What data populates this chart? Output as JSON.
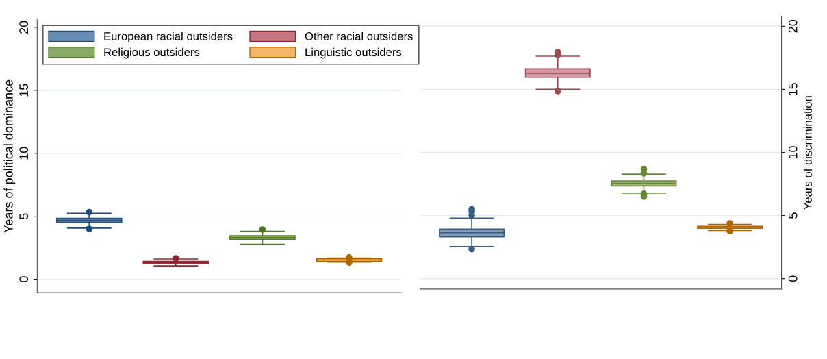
{
  "chart_data": [
    {
      "type": "box",
      "ylabel": "Years of political dominance",
      "categories": [
        null,
        null,
        null,
        null
      ],
      "ylim": [
        -1.06,
        20.6
      ],
      "yticks": [
        0,
        5,
        10,
        15,
        20
      ],
      "grid": "y",
      "legend": "top left",
      "tick_labels": "y",
      "series": [
        {
          "name": "European racial outsiders",
          "color": "#6a8cb0",
          "boxes": [
            {
              "low": 4.06,
              "q1": 4.52,
              "median": 4.68,
              "q3": 4.84,
              "high": 5.23,
              "outliers": [
                5.33,
                4.0
              ]
            },
            null,
            null,
            null
          ]
        },
        {
          "name": "Other racial outsiders",
          "color": "#c47780",
          "boxes": [
            null,
            {
              "low": 1.06,
              "q1": 1.22,
              "median": 1.32,
              "q3": 1.41,
              "high": 1.61,
              "outliers": [
                1.66
              ]
            },
            null,
            null
          ]
        },
        {
          "name": "Religious outsiders",
          "color": "#8aa866",
          "boxes": [
            null,
            null,
            {
              "low": 2.77,
              "q1": 3.16,
              "median": 3.3,
              "q3": 3.45,
              "high": 3.81,
              "outliers": [
                3.94
              ]
            },
            null
          ]
        },
        {
          "name": "Linguistic outsiders",
          "color": "#f2b766",
          "boxes": [
            null,
            null,
            null,
            {
              "low": 1.36,
              "q1": 1.4,
              "median": 1.53,
              "q3": 1.65,
              "high": 1.68,
              "outliers": [
                1.72,
                1.33
              ]
            }
          ]
        }
      ]
    },
    {
      "type": "box",
      "y2label": "Years of discrimination",
      "categories": [
        null,
        null,
        null,
        null
      ],
      "y2lim": [
        -0.82,
        20.8
      ],
      "y2ticks": [
        0,
        5,
        10,
        15,
        20
      ],
      "grid": "y",
      "tick_labels": "y",
      "series": [
        {
          "color": "#7f9bb8",
          "axis": "y2",
          "boxes": [
            {
              "low": 2.54,
              "q1": 3.32,
              "median": 3.64,
              "q3": 3.93,
              "high": 4.8,
              "outliers": [
                5.5,
                5.3,
                5.0,
                2.34
              ]
            },
            null,
            null,
            null
          ]
        },
        {
          "color": "#d29aa0",
          "axis": "y2",
          "boxes": [
            null,
            {
              "low": 15.0,
              "q1": 15.96,
              "median": 16.28,
              "q3": 16.63,
              "high": 17.63,
              "outliers": [
                17.95,
                17.75,
                14.86
              ]
            },
            null,
            null
          ]
        },
        {
          "color": "#a3bb80",
          "axis": "y2",
          "boxes": [
            null,
            null,
            {
              "low": 6.78,
              "q1": 7.35,
              "median": 7.55,
              "q3": 7.75,
              "high": 8.28,
              "outliers": [
                8.69,
                8.35,
                6.72,
                6.51
              ]
            },
            null
          ]
        },
        {
          "color": "#f2b766",
          "axis": "y2",
          "boxes": [
            null,
            null,
            null,
            {
              "low": 3.81,
              "q1": 3.99,
              "median": 4.07,
              "q3": 4.15,
              "high": 4.29,
              "outliers": [
                4.38,
                3.77
              ]
            }
          ]
        }
      ]
    }
  ]
}
